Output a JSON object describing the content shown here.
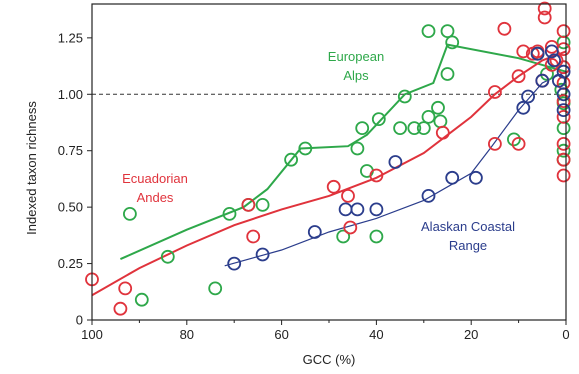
{
  "chart_data": {
    "type": "scatter",
    "title": "",
    "xlabel": "GCC (%)",
    "ylabel": "Indexed taxon richness",
    "xlim": [
      100,
      0
    ],
    "ylim": [
      0,
      1.4
    ],
    "x_reversed": true,
    "grid": false,
    "legend": "none",
    "x_ticks": [
      100,
      80,
      60,
      40,
      20,
      0
    ],
    "y_ticks": [
      0,
      0.25,
      0.5,
      0.75,
      1.0,
      1.25
    ],
    "y_tick_labels": [
      "0",
      "0.25",
      "0.50",
      "0.75",
      "1.00",
      "1.25"
    ],
    "reference_line": {
      "y": 1.0,
      "style": "dashed"
    },
    "annotations": [
      {
        "id": "alps",
        "lines": [
          "European",
          "Alps"
        ],
        "color": "#2ea84a"
      },
      {
        "id": "andes",
        "lines": [
          "Ecuadorian",
          "Andes"
        ],
        "color": "#e0333c"
      },
      {
        "id": "alaska",
        "lines": [
          "Alaskan Coastal",
          "Range"
        ],
        "color": "#2b3d8c"
      }
    ],
    "series": [
      {
        "id": "alps",
        "color": "#2ea84a",
        "points": [
          {
            "x": 92,
            "y": 0.47
          },
          {
            "x": 84,
            "y": 0.28
          },
          {
            "x": 89.5,
            "y": 0.09
          },
          {
            "x": 74,
            "y": 0.14
          },
          {
            "x": 71,
            "y": 0.47
          },
          {
            "x": 67,
            "y": 0.51
          },
          {
            "x": 64,
            "y": 0.51
          },
          {
            "x": 58,
            "y": 0.71
          },
          {
            "x": 55,
            "y": 0.76
          },
          {
            "x": 47,
            "y": 0.37
          },
          {
            "x": 44,
            "y": 0.76
          },
          {
            "x": 43,
            "y": 0.85
          },
          {
            "x": 42,
            "y": 0.66
          },
          {
            "x": 40,
            "y": 0.37
          },
          {
            "x": 39.5,
            "y": 0.89
          },
          {
            "x": 34,
            "y": 0.99
          },
          {
            "x": 35,
            "y": 0.85
          },
          {
            "x": 32,
            "y": 0.85
          },
          {
            "x": 30,
            "y": 0.85
          },
          {
            "x": 29,
            "y": 0.9
          },
          {
            "x": 27,
            "y": 0.94
          },
          {
            "x": 26.5,
            "y": 0.88
          },
          {
            "x": 29,
            "y": 1.28
          },
          {
            "x": 25,
            "y": 1.28
          },
          {
            "x": 24,
            "y": 1.23
          },
          {
            "x": 25,
            "y": 1.09
          },
          {
            "x": 11,
            "y": 0.8
          },
          {
            "x": 6,
            "y": 1.18
          },
          {
            "x": 4,
            "y": 1.09
          },
          {
            "x": 1,
            "y": 1.02
          },
          {
            "x": 0.5,
            "y": 1.23
          },
          {
            "x": 0.5,
            "y": 0.96
          },
          {
            "x": 0.5,
            "y": 0.85
          },
          {
            "x": 0.5,
            "y": 0.75
          },
          {
            "x": 0.5,
            "y": 0.71
          }
        ],
        "trend": [
          {
            "x": 94,
            "y": 0.27
          },
          {
            "x": 80,
            "y": 0.4
          },
          {
            "x": 68,
            "y": 0.5
          },
          {
            "x": 63,
            "y": 0.58
          },
          {
            "x": 56,
            "y": 0.76
          },
          {
            "x": 46,
            "y": 0.77
          },
          {
            "x": 42,
            "y": 0.82
          },
          {
            "x": 34,
            "y": 1.0
          },
          {
            "x": 28,
            "y": 1.05
          },
          {
            "x": 25,
            "y": 1.22
          },
          {
            "x": 10,
            "y": 1.16
          },
          {
            "x": 0,
            "y": 1.1
          }
        ]
      },
      {
        "id": "andes",
        "color": "#e0333c",
        "points": [
          {
            "x": 100,
            "y": 0.18
          },
          {
            "x": 94,
            "y": 0.05
          },
          {
            "x": 93,
            "y": 0.14
          },
          {
            "x": 67,
            "y": 0.51
          },
          {
            "x": 66,
            "y": 0.37
          },
          {
            "x": 49,
            "y": 0.59
          },
          {
            "x": 46,
            "y": 0.55
          },
          {
            "x": 45.5,
            "y": 0.41
          },
          {
            "x": 40,
            "y": 0.64
          },
          {
            "x": 26,
            "y": 0.83
          },
          {
            "x": 15,
            "y": 0.78
          },
          {
            "x": 15,
            "y": 1.01
          },
          {
            "x": 13,
            "y": 1.29
          },
          {
            "x": 10,
            "y": 0.78
          },
          {
            "x": 10,
            "y": 1.08
          },
          {
            "x": 9,
            "y": 1.19
          },
          {
            "x": 7,
            "y": 1.18
          },
          {
            "x": 6,
            "y": 1.19
          },
          {
            "x": 5,
            "y": 1.06
          },
          {
            "x": 4.5,
            "y": 1.38
          },
          {
            "x": 4.5,
            "y": 1.34
          },
          {
            "x": 3,
            "y": 1.21
          },
          {
            "x": 3,
            "y": 1.13
          },
          {
            "x": 2,
            "y": 1.15
          },
          {
            "x": 0.5,
            "y": 1.28
          },
          {
            "x": 0.5,
            "y": 1.2
          },
          {
            "x": 0.5,
            "y": 1.12
          },
          {
            "x": 0.5,
            "y": 1.05
          },
          {
            "x": 0.5,
            "y": 0.97
          },
          {
            "x": 0.5,
            "y": 0.9
          },
          {
            "x": 0.5,
            "y": 0.78
          },
          {
            "x": 0.5,
            "y": 0.71
          },
          {
            "x": 0.5,
            "y": 0.64
          }
        ],
        "trend": [
          {
            "x": 100,
            "y": 0.11
          },
          {
            "x": 90,
            "y": 0.23
          },
          {
            "x": 80,
            "y": 0.33
          },
          {
            "x": 70,
            "y": 0.42
          },
          {
            "x": 60,
            "y": 0.49
          },
          {
            "x": 50,
            "y": 0.55
          },
          {
            "x": 40,
            "y": 0.63
          },
          {
            "x": 30,
            "y": 0.74
          },
          {
            "x": 20,
            "y": 0.9
          },
          {
            "x": 15,
            "y": 1.0
          },
          {
            "x": 10,
            "y": 1.08
          },
          {
            "x": 5,
            "y": 1.15
          },
          {
            "x": 0,
            "y": 1.19
          }
        ]
      },
      {
        "id": "alaska",
        "color": "#2b3d8c",
        "points": [
          {
            "x": 70,
            "y": 0.25
          },
          {
            "x": 64,
            "y": 0.29
          },
          {
            "x": 53,
            "y": 0.39
          },
          {
            "x": 46.5,
            "y": 0.49
          },
          {
            "x": 44,
            "y": 0.49
          },
          {
            "x": 40,
            "y": 0.49
          },
          {
            "x": 36,
            "y": 0.7
          },
          {
            "x": 29,
            "y": 0.55
          },
          {
            "x": 24,
            "y": 0.63
          },
          {
            "x": 19,
            "y": 0.63
          },
          {
            "x": 9,
            "y": 0.94
          },
          {
            "x": 8,
            "y": 0.99
          },
          {
            "x": 6,
            "y": 1.18
          },
          {
            "x": 5,
            "y": 1.06
          },
          {
            "x": 3,
            "y": 1.19
          },
          {
            "x": 2.5,
            "y": 1.15
          },
          {
            "x": 1.5,
            "y": 1.06
          },
          {
            "x": 0.5,
            "y": 1.1
          },
          {
            "x": 0.5,
            "y": 1.0
          },
          {
            "x": 0.5,
            "y": 0.93
          }
        ],
        "trend": [
          {
            "x": 72,
            "y": 0.24
          },
          {
            "x": 60,
            "y": 0.31
          },
          {
            "x": 50,
            "y": 0.39
          },
          {
            "x": 40,
            "y": 0.45
          },
          {
            "x": 30,
            "y": 0.53
          },
          {
            "x": 20,
            "y": 0.65
          },
          {
            "x": 16,
            "y": 0.76
          },
          {
            "x": 10,
            "y": 0.93
          },
          {
            "x": 5,
            "y": 1.05
          },
          {
            "x": 0,
            "y": 1.1
          }
        ]
      }
    ]
  }
}
